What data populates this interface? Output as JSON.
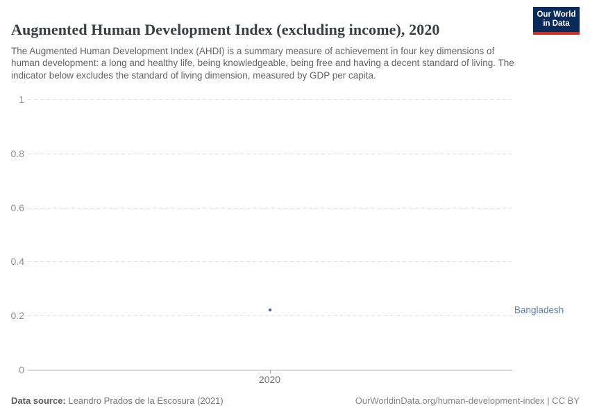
{
  "header": {
    "title": "Augmented Human Development Index (excluding income), 2020",
    "subtitle": "The Augmented Human Development Index (AHDI) is a summary measure of achievement in four key dimensions of human development: a long and healthy life, being knowledgeable, being free and having a decent standard of living. The indicator below excludes the standard of living dimension, measured by GDP per capita."
  },
  "logo": {
    "line1": "Our World",
    "line2": "in Data",
    "bg_color": "#0a2a5a",
    "stripe_color": "#cf2d24",
    "text_color": "#ffffff"
  },
  "chart_data": {
    "type": "scatter",
    "title": "Augmented Human Development Index (excluding income), 2020",
    "xlabel": "",
    "ylabel": "",
    "ylim": [
      0,
      1
    ],
    "yticks": [
      0,
      0.2,
      0.4,
      0.6,
      0.8,
      1
    ],
    "xticks": [
      "2020"
    ],
    "grid": "horizontal-dashed",
    "legend_position": "entity-label-right",
    "series": [
      {
        "name": "Bangladesh",
        "point_color": "#3d5a96",
        "label_color": "#5b7db5",
        "points": [
          {
            "x": 2020,
            "y": 0.22
          }
        ]
      }
    ]
  },
  "footer": {
    "source_label": "Data source:",
    "source_value": " Leandro Prados de la Escosura (2021)",
    "right_text": "OurWorldinData.org/human-development-index | CC BY"
  },
  "colors": {
    "title": "#3a3f44",
    "subtitle": "#646464",
    "y_tick_label": "#8f8f8f",
    "x_tick_label": "#6f6f6f",
    "gridline": "#dcdcdc",
    "axis_line": "#a3a3a3"
  }
}
